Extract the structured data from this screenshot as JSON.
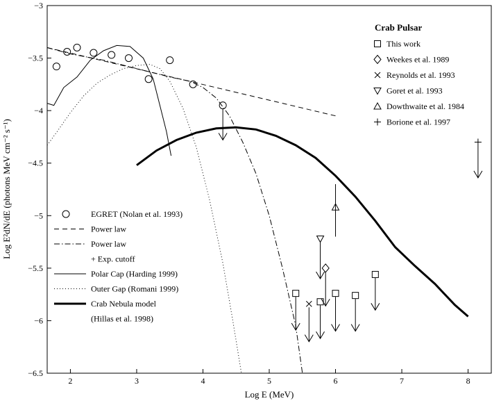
{
  "chart_data": {
    "type": "scatter",
    "xlabel": "Log E (MeV)",
    "ylabel": "Log E²dN/dE (photons MeV cm⁻² s⁻¹)",
    "xlim": [
      1.65,
      8.35
    ],
    "ylim": [
      -6.5,
      -3
    ],
    "xticks": [
      "2",
      "3",
      "4",
      "5",
      "6",
      "7",
      "8"
    ],
    "yticks": [
      "−3",
      "−3.5",
      "−4",
      "−4.5",
      "−5",
      "−5.5",
      "−6",
      "−6.5"
    ],
    "grid": false,
    "legend_right": {
      "title": "Crab Pulsar",
      "entries": [
        {
          "marker": "square",
          "label": "This work"
        },
        {
          "marker": "diamond",
          "label": "Weekes et al. 1989"
        },
        {
          "marker": "cross",
          "label": "Reynolds et al. 1993"
        },
        {
          "marker": "triangle-down",
          "label": "Goret et al. 1993"
        },
        {
          "marker": "triangle-up",
          "label": "Dowthwaite et al. 1984"
        },
        {
          "marker": "plus",
          "label": "Borione et al. 1997"
        }
      ]
    },
    "legend_left": {
      "entries": [
        {
          "style": "circle",
          "label": "EGRET (Nolan et al. 1993)"
        },
        {
          "style": "dashed",
          "label": "Power law"
        },
        {
          "style": "dashdot",
          "label": "Power law"
        },
        {
          "style": "none",
          "label": "+ Exp. cutoff"
        },
        {
          "style": "solid",
          "label": "Polar Cap (Harding 1999)"
        },
        {
          "style": "dotted",
          "label": "Outer Gap (Romani 1999)"
        },
        {
          "style": "thick",
          "label": "Crab Nebula model"
        },
        {
          "style": "none",
          "label": "(Hillas et al. 1998)"
        }
      ]
    },
    "series": [
      {
        "name": "EGRET (Nolan et al. 1993)",
        "style": "circle",
        "points": [
          [
            1.79,
            -3.58
          ],
          [
            1.95,
            -3.44
          ],
          [
            2.1,
            -3.4
          ],
          [
            2.35,
            -3.45
          ],
          [
            2.62,
            -3.47
          ],
          [
            2.88,
            -3.5
          ],
          [
            3.18,
            -3.7
          ],
          [
            3.5,
            -3.52
          ],
          [
            3.85,
            -3.75
          ],
          [
            4.3,
            -3.95
          ]
        ],
        "upper_limit_arrows": [
          {
            "x": 4.3,
            "from": -3.95,
            "to": -4.28
          }
        ]
      },
      {
        "name": "Power law",
        "style": "dashed",
        "points": [
          [
            1.65,
            -3.4
          ],
          [
            6.0,
            -4.05
          ]
        ]
      },
      {
        "name": "Power law + Exp. cutoff",
        "style": "dashdot",
        "points": [
          [
            1.65,
            -3.4
          ],
          [
            2.0,
            -3.46
          ],
          [
            2.5,
            -3.52
          ],
          [
            3.0,
            -3.6
          ],
          [
            3.5,
            -3.68
          ],
          [
            3.8,
            -3.72
          ],
          [
            4.0,
            -3.78
          ],
          [
            4.2,
            -3.88
          ],
          [
            4.4,
            -4.05
          ],
          [
            4.6,
            -4.3
          ],
          [
            4.8,
            -4.6
          ],
          [
            5.0,
            -5.0
          ],
          [
            5.2,
            -5.5
          ],
          [
            5.4,
            -6.05
          ],
          [
            5.5,
            -6.5
          ]
        ]
      },
      {
        "name": "Polar Cap (Harding 1999)",
        "style": "solid",
        "points": [
          [
            1.65,
            -3.93
          ],
          [
            1.75,
            -3.95
          ],
          [
            1.9,
            -3.78
          ],
          [
            2.1,
            -3.68
          ],
          [
            2.3,
            -3.52
          ],
          [
            2.5,
            -3.43
          ],
          [
            2.7,
            -3.38
          ],
          [
            2.9,
            -3.39
          ],
          [
            3.1,
            -3.5
          ],
          [
            3.25,
            -3.7
          ],
          [
            3.35,
            -3.95
          ],
          [
            3.45,
            -4.2
          ],
          [
            3.52,
            -4.43
          ]
        ]
      },
      {
        "name": "Outer Gap (Romani 1999)",
        "style": "dotted",
        "points": [
          [
            1.65,
            -4.33
          ],
          [
            1.8,
            -4.2
          ],
          [
            2.0,
            -4.02
          ],
          [
            2.2,
            -3.86
          ],
          [
            2.4,
            -3.74
          ],
          [
            2.6,
            -3.66
          ],
          [
            2.8,
            -3.6
          ],
          [
            3.0,
            -3.57
          ],
          [
            3.2,
            -3.56
          ],
          [
            3.35,
            -3.6
          ],
          [
            3.5,
            -3.72
          ],
          [
            3.7,
            -3.98
          ],
          [
            3.9,
            -4.35
          ],
          [
            4.1,
            -4.85
          ],
          [
            4.3,
            -5.45
          ],
          [
            4.45,
            -6.0
          ],
          [
            4.58,
            -6.5
          ]
        ]
      },
      {
        "name": "Crab Nebula model (Hillas et al. 1998)",
        "style": "thick",
        "points": [
          [
            3.0,
            -4.52
          ],
          [
            3.3,
            -4.38
          ],
          [
            3.6,
            -4.28
          ],
          [
            3.9,
            -4.21
          ],
          [
            4.2,
            -4.17
          ],
          [
            4.5,
            -4.16
          ],
          [
            4.8,
            -4.18
          ],
          [
            5.1,
            -4.24
          ],
          [
            5.4,
            -4.33
          ],
          [
            5.7,
            -4.45
          ],
          [
            6.0,
            -4.62
          ],
          [
            6.3,
            -4.82
          ],
          [
            6.6,
            -5.05
          ],
          [
            6.9,
            -5.3
          ],
          [
            7.2,
            -5.48
          ],
          [
            7.5,
            -5.65
          ],
          [
            7.8,
            -5.85
          ],
          [
            8.0,
            -5.96
          ]
        ]
      },
      {
        "name": "This work",
        "style": "square",
        "upper_limits": [
          {
            "x": 5.4,
            "y": -5.74,
            "to": -6.09
          },
          {
            "x": 5.77,
            "y": -5.82,
            "to": -6.17
          },
          {
            "x": 6.0,
            "y": -5.74,
            "to": -6.1
          },
          {
            "x": 6.3,
            "y": -5.76,
            "to": -6.1
          },
          {
            "x": 6.6,
            "y": -5.56,
            "to": -5.9
          }
        ]
      },
      {
        "name": "Weekes et al. 1989",
        "style": "diamond",
        "upper_limits": [
          {
            "x": 5.85,
            "y": -5.5,
            "to": -5.86
          }
        ]
      },
      {
        "name": "Reynolds et al. 1993",
        "style": "cross",
        "upper_limits": [
          {
            "x": 5.6,
            "y": -5.84,
            "to": -6.2
          }
        ]
      },
      {
        "name": "Goret et al. 1993",
        "style": "triangle-down",
        "upper_limits": [
          {
            "x": 5.77,
            "y": -5.22,
            "to": -5.6
          }
        ]
      },
      {
        "name": "Dowthwaite et al. 1984",
        "style": "triangle-up",
        "error_bars": [
          {
            "x": 6.0,
            "y": -4.92,
            "low": -5.2,
            "high": -4.7
          }
        ]
      },
      {
        "name": "Borione et al. 1997",
        "style": "plus",
        "upper_limits": [
          {
            "x": 8.15,
            "y": -4.3,
            "to": -4.64
          }
        ]
      }
    ]
  }
}
